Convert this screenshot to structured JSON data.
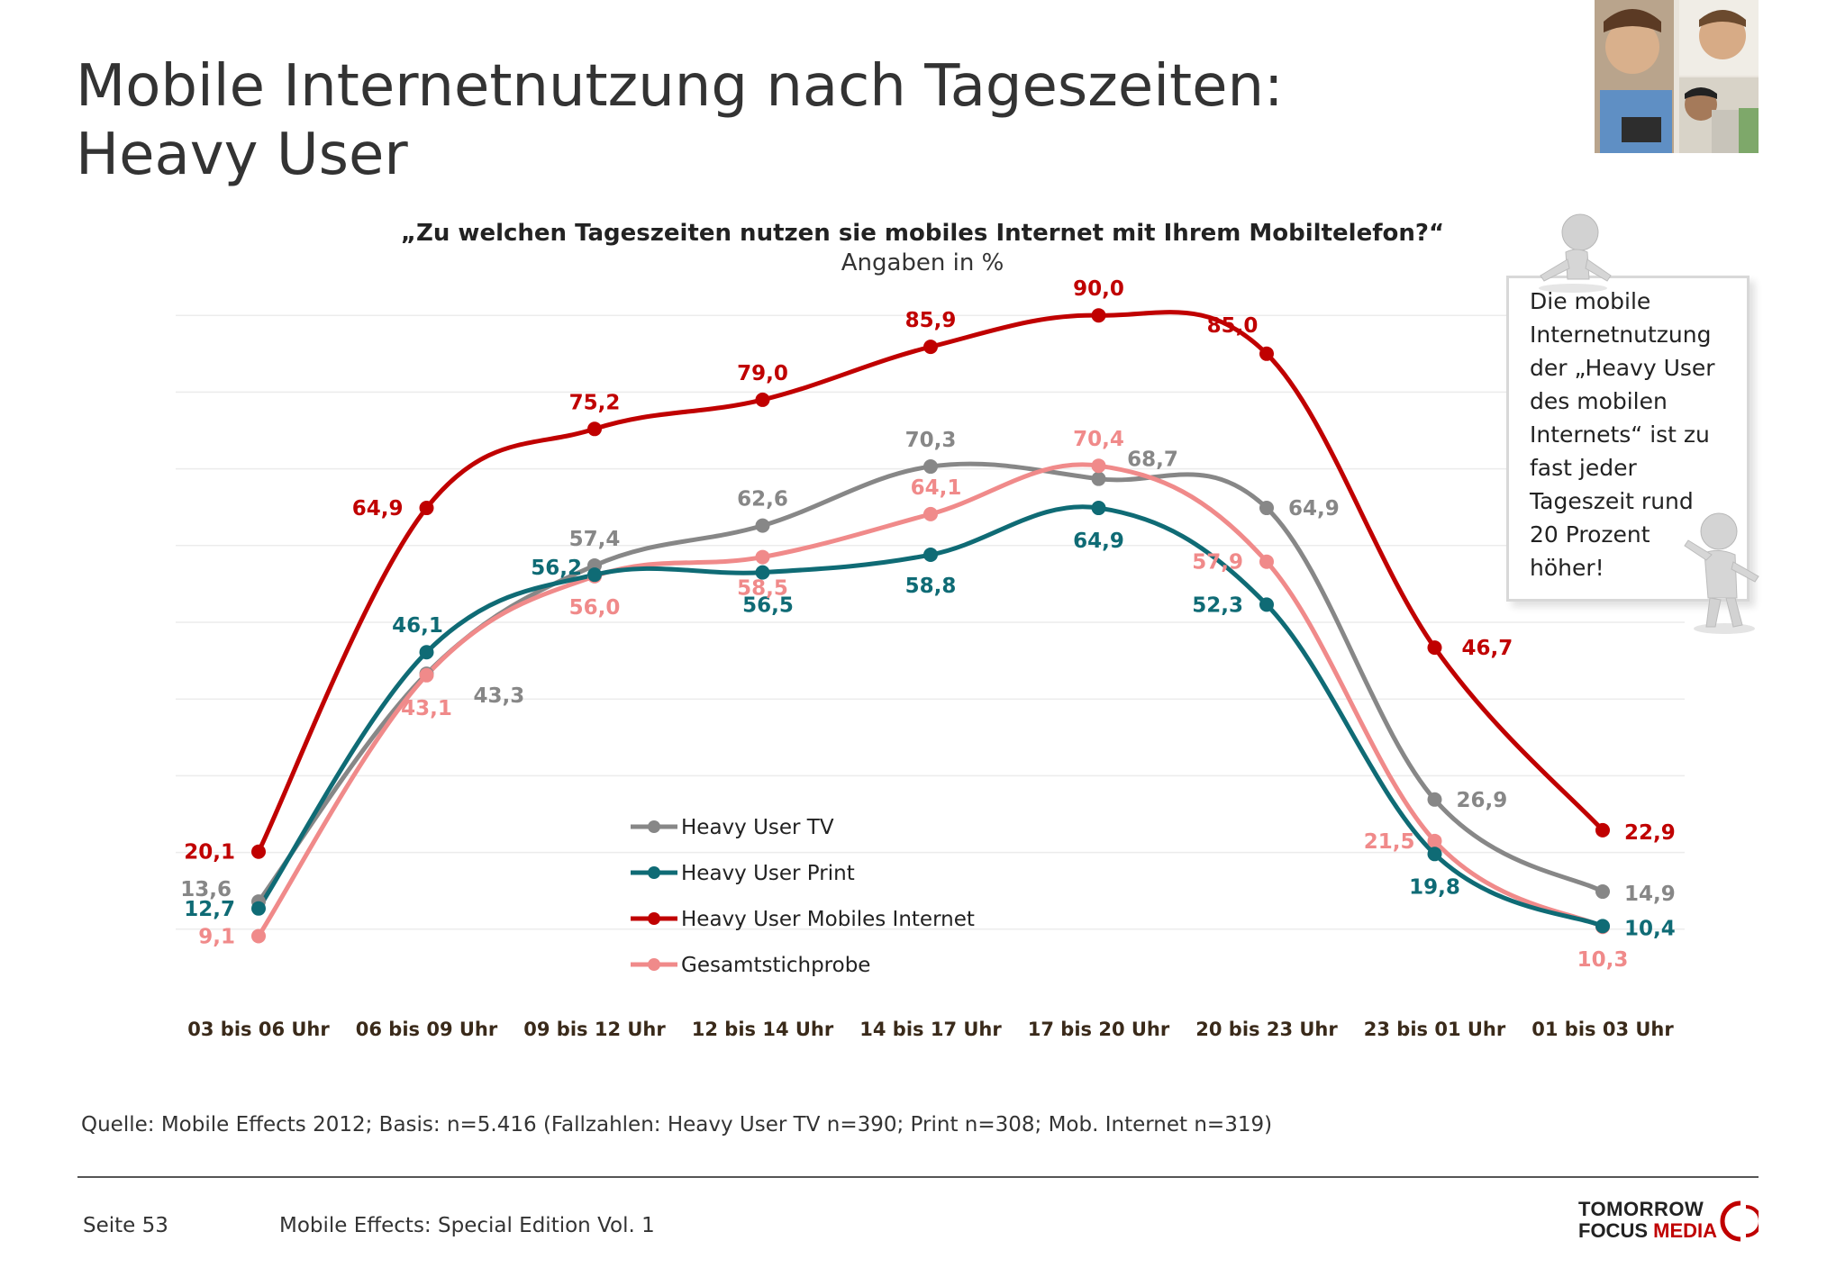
{
  "header": {
    "title_line1": "Mobile Internetnutzung nach Tageszeiten:",
    "title_line2": "Heavy User"
  },
  "chart_data": {
    "type": "line",
    "title": "„Zu welchen Tageszeiten nutzen sie mobiles Internet mit Ihrem Mobiltelefon?“",
    "subtitle": "Angaben in %",
    "xlabel": "",
    "ylabel": "",
    "ylim": [
      0,
      100
    ],
    "grid": true,
    "legend_position": "center-bottom",
    "categories": [
      "03 bis 06 Uhr",
      "06 bis 09 Uhr",
      "09 bis 12 Uhr",
      "12 bis 14 Uhr",
      "14 bis 17 Uhr",
      "17 bis 20 Uhr",
      "20 bis 23 Uhr",
      "23 bis 01 Uhr",
      "01 bis 03 Uhr"
    ],
    "series": [
      {
        "name": "Heavy User TV",
        "color": "#878787",
        "values": [
          13.6,
          43.3,
          57.4,
          62.6,
          70.3,
          68.7,
          64.9,
          26.9,
          14.9
        ],
        "labels": [
          "13,6",
          "43,3",
          "57,4",
          "62,6",
          "70,3",
          "68,7",
          "64,9",
          "26,9",
          "14,9"
        ]
      },
      {
        "name": "Heavy User Print",
        "color": "#0f6b75",
        "values": [
          12.7,
          46.1,
          56.2,
          56.5,
          58.8,
          64.9,
          52.3,
          19.8,
          10.4
        ],
        "labels": [
          "12,7",
          "46,1",
          "56,2",
          "56,5",
          "58,8",
          "64,9",
          "52,3",
          "19,8",
          "10,4"
        ]
      },
      {
        "name": "Heavy User Mobiles Internet",
        "color": "#c00000",
        "values": [
          20.1,
          64.9,
          75.2,
          79.0,
          85.9,
          90.0,
          85.0,
          46.7,
          22.9
        ],
        "labels": [
          "20,1",
          "64,9",
          "75,2",
          "79,0",
          "85,9",
          "90,0",
          "85,0",
          "46,7",
          "22,9"
        ]
      },
      {
        "name": "Gesamtstichprobe",
        "color": "#f08a8a",
        "values": [
          9.1,
          43.1,
          56.0,
          58.5,
          64.1,
          70.4,
          57.9,
          21.5,
          10.3
        ],
        "labels": [
          "9,1",
          "43,1",
          "56,0",
          "58,5",
          "64,1",
          "70,4",
          "57,9",
          "21,5",
          "10,3"
        ]
      }
    ]
  },
  "callout": {
    "lines": [
      "Die mobile",
      "Internetnutzung",
      "der „Heavy User",
      "des mobilen",
      "Internets“ ist zu",
      "fast jeder",
      "Tageszeit rund",
      "20 Prozent",
      "höher!"
    ]
  },
  "source": "Quelle: Mobile Effects 2012; Basis: n=5.416 (Fallzahlen: Heavy User TV n=390; Print n=308; Mob. Internet n=319)",
  "footer": {
    "page": "Seite 53",
    "edition": "Mobile Effects: Special Edition Vol. 1",
    "brand_line1": "TOMORROW",
    "brand_line2_a": "FOCUS ",
    "brand_line2_b": "MEDIA",
    "brand_color": "#c00000"
  }
}
